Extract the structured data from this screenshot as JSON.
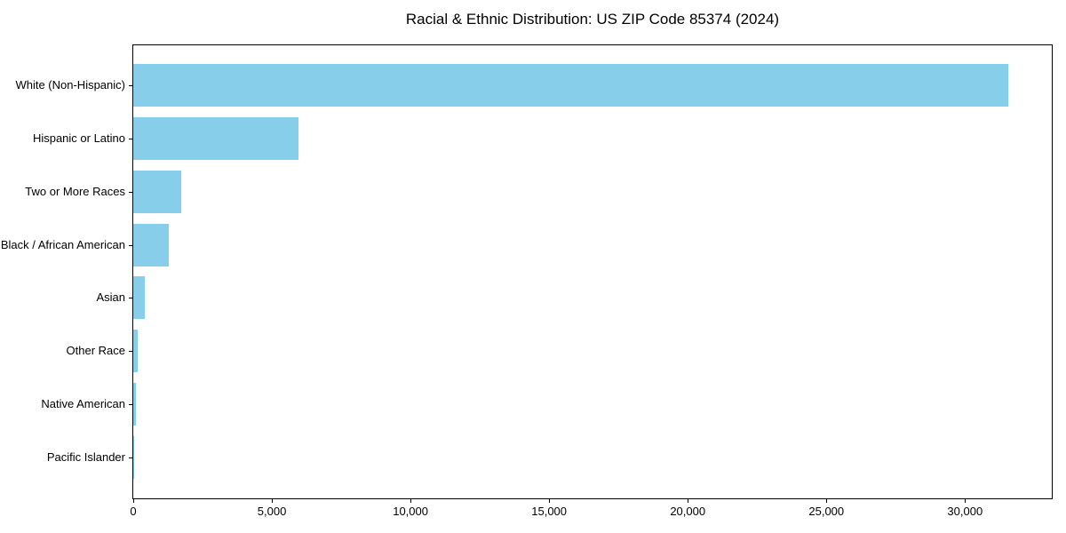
{
  "chart_data": {
    "type": "bar",
    "orientation": "horizontal",
    "title": "Racial & Ethnic Distribution: US ZIP Code 85374 (2024)",
    "categories": [
      "White (Non-Hispanic)",
      "Hispanic or Latino",
      "Two or More Races",
      "Black / African American",
      "Asian",
      "Other Race",
      "Native American",
      "Pacific Islander"
    ],
    "values": [
      31560,
      5950,
      1740,
      1280,
      430,
      160,
      100,
      20
    ],
    "xlabel": "",
    "ylabel": "",
    "xlim": [
      0,
      33130
    ],
    "xticks": [
      {
        "value": 0,
        "label": "0"
      },
      {
        "value": 5000,
        "label": "5,000"
      },
      {
        "value": 10000,
        "label": "10,000"
      },
      {
        "value": 15000,
        "label": "15,000"
      },
      {
        "value": 20000,
        "label": "20,000"
      },
      {
        "value": 25000,
        "label": "25,000"
      },
      {
        "value": 30000,
        "label": "30,000"
      }
    ],
    "grid": false,
    "legend": null,
    "colors": {
      "bar": "#87CEEB",
      "text": "#000000",
      "axis": "#000000",
      "background": "#FFFFFF"
    }
  }
}
